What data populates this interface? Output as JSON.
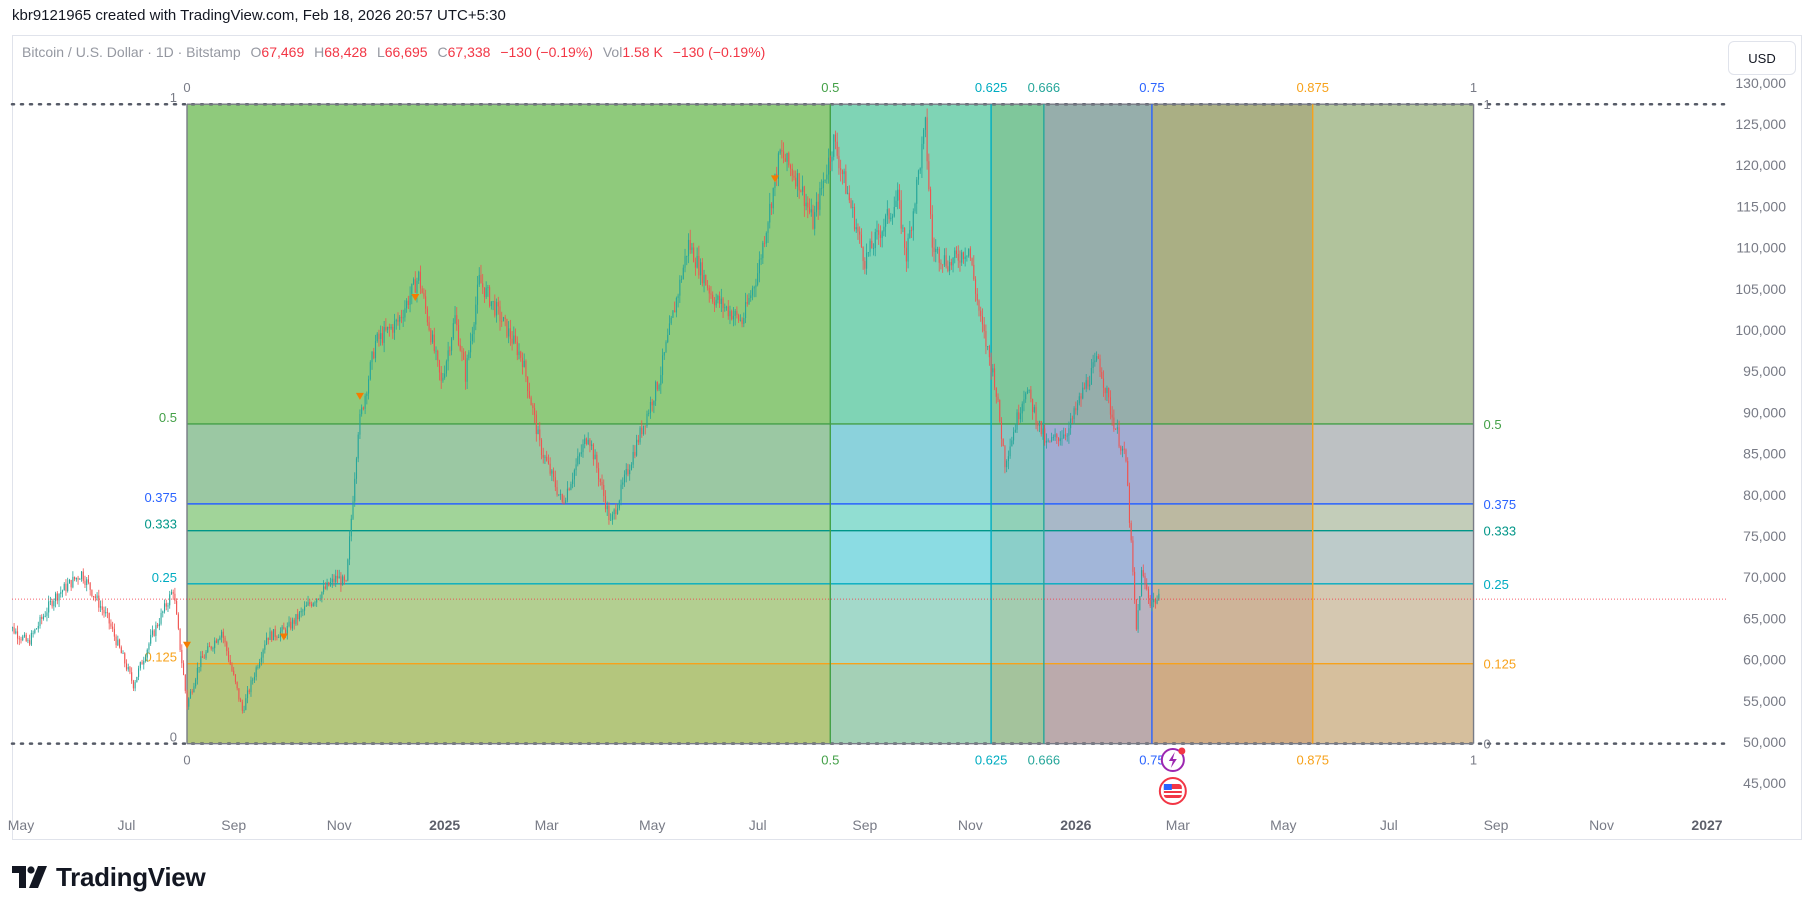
{
  "header": {
    "text": "kbr9121965 created with TradingView.com, Feb 18, 2026 20:57 UTC+5:30"
  },
  "legend": {
    "symbol": "Bitcoin / U.S. Dollar · 1D · Bitstamp",
    "open_label": "O",
    "open": "67,469",
    "high_label": "H",
    "high": "68,428",
    "low_label": "L",
    "low": "66,695",
    "close_label": "C",
    "close": "67,338",
    "change": "−130 (−0.19%)",
    "vol_label": "Vol",
    "vol": "1.58 K",
    "vol_change": "−130 (−0.19%)"
  },
  "currency_button": "USD",
  "logo_text": "TradingView",
  "chart_data": {
    "type": "candlestick",
    "symbol": "Bitcoin / U.S. Dollar",
    "interval": "1D",
    "exchange": "Bitstamp",
    "y_axis": {
      "range": [
        41000,
        131000
      ],
      "ticks": [
        "130,000",
        "125,000",
        "120,000",
        "115,000",
        "110,000",
        "105,000",
        "100,000",
        "95,000",
        "90,000",
        "85,000",
        "80,000",
        "75,000",
        "70,000",
        "65,000",
        "60,000",
        "55,000",
        "50,000",
        "45,000"
      ],
      "tick_values": [
        130000,
        125000,
        120000,
        115000,
        110000,
        105000,
        100000,
        95000,
        90000,
        85000,
        80000,
        75000,
        70000,
        65000,
        60000,
        55000,
        50000,
        45000
      ]
    },
    "x_axis": {
      "labels": [
        "May",
        "Jul",
        "Sep",
        "Nov",
        "2025",
        "Mar",
        "May",
        "Jul",
        "Sep",
        "Nov",
        "2026",
        "Mar",
        "May",
        "Jul",
        "Sep",
        "Nov",
        "2027"
      ],
      "dates": [
        "2024-05-01",
        "2024-07-01",
        "2024-09-01",
        "2024-11-01",
        "2025-01-01",
        "2025-03-01",
        "2025-05-01",
        "2025-07-01",
        "2025-09-01",
        "2025-11-01",
        "2026-01-01",
        "2026-03-01",
        "2026-05-01",
        "2026-07-01",
        "2026-09-01",
        "2026-11-01",
        "2027-01-01"
      ],
      "bold": [
        "2025",
        "2026",
        "2027"
      ],
      "range": [
        "2024-04-22",
        "2027-01-12"
      ]
    },
    "price_line": 67338,
    "price_path": [
      [
        "2024-04-22",
        64500
      ],
      [
        "2024-05-05",
        62000
      ],
      [
        "2024-05-20",
        67500
      ],
      [
        "2024-06-05",
        70500
      ],
      [
        "2024-06-20",
        65000
      ],
      [
        "2024-07-05",
        57000
      ],
      [
        "2024-07-15",
        62500
      ],
      [
        "2024-07-28",
        68500
      ],
      [
        "2024-08-05",
        54500
      ],
      [
        "2024-08-12",
        59500
      ],
      [
        "2024-08-25",
        63500
      ],
      [
        "2024-09-06",
        53800
      ],
      [
        "2024-09-20",
        62800
      ],
      [
        "2024-10-01",
        63500
      ],
      [
        "2024-10-15",
        66800
      ],
      [
        "2024-10-31",
        70000
      ],
      [
        "2024-11-05",
        69000
      ],
      [
        "2024-11-12",
        88000
      ],
      [
        "2024-11-22",
        98500
      ],
      [
        "2024-12-05",
        101000
      ],
      [
        "2024-12-17",
        106500
      ],
      [
        "2024-12-30",
        93500
      ],
      [
        "2025-01-07",
        101500
      ],
      [
        "2025-01-13",
        94500
      ],
      [
        "2025-01-21",
        106000
      ],
      [
        "2025-02-01",
        102000
      ],
      [
        "2025-02-15",
        96500
      ],
      [
        "2025-02-25",
        86000
      ],
      [
        "2025-03-10",
        79000
      ],
      [
        "2025-03-25",
        87500
      ],
      [
        "2025-04-07",
        76500
      ],
      [
        "2025-04-20",
        85000
      ],
      [
        "2025-05-05",
        94000
      ],
      [
        "2025-05-22",
        110500
      ],
      [
        "2025-06-05",
        104000
      ],
      [
        "2025-06-22",
        101000
      ],
      [
        "2025-07-01",
        107000
      ],
      [
        "2025-07-14",
        121500
      ],
      [
        "2025-07-25",
        118000
      ],
      [
        "2025-08-02",
        113000
      ],
      [
        "2025-08-14",
        123000
      ],
      [
        "2025-09-01",
        108500
      ],
      [
        "2025-09-20",
        116000
      ],
      [
        "2025-09-25",
        109000
      ],
      [
        "2025-10-06",
        124700
      ],
      [
        "2025-10-10",
        110000
      ],
      [
        "2025-10-20",
        108000
      ],
      [
        "2025-10-31",
        110000
      ],
      [
        "2025-11-07",
        101000
      ],
      [
        "2025-11-15",
        94000
      ],
      [
        "2025-11-21",
        84000
      ],
      [
        "2025-12-03",
        93000
      ],
      [
        "2025-12-15",
        86000
      ],
      [
        "2025-12-28",
        88000
      ],
      [
        "2026-01-06",
        93000
      ],
      [
        "2026-01-14",
        96500
      ],
      [
        "2026-01-22",
        89500
      ],
      [
        "2026-01-30",
        84000
      ],
      [
        "2026-02-05",
        63500
      ],
      [
        "2026-02-08",
        70500
      ],
      [
        "2026-02-13",
        67000
      ],
      [
        "2026-02-18",
        67338
      ]
    ],
    "markers": [
      [
        "2024-08-05",
        61800
      ],
      [
        "2024-09-30",
        62800
      ],
      [
        "2024-11-13",
        92000
      ],
      [
        "2024-12-15",
        104000
      ],
      [
        "2025-07-11",
        118400
      ]
    ],
    "fib_time_zones": {
      "start_date": "2024-08-05",
      "end_date": "2026-08-19",
      "levels": [
        {
          "label": "0",
          "value": 0,
          "color": "#787b86",
          "fill": "#f5c18a"
        },
        {
          "label": "0.5",
          "value": 0.5,
          "color": "#43a047",
          "fill": "#4caf50"
        },
        {
          "label": "0.625",
          "value": 0.625,
          "color": "#00acc1",
          "fill": "#26c6da"
        },
        {
          "label": "0.666",
          "value": 0.666,
          "color": "#26a69a",
          "fill": "#26a69a"
        },
        {
          "label": "0.75",
          "value": 0.75,
          "color": "#2962ff",
          "fill": "#5c6bc0"
        },
        {
          "label": "0.875",
          "value": 0.875,
          "color": "#f7a21b",
          "fill": "#8d6e63"
        },
        {
          "label": "1",
          "value": 1,
          "color": "#787b86",
          "fill": "#9e9e9e"
        }
      ]
    },
    "fib_price_levels": {
      "low": 49800,
      "high": 127400,
      "levels": [
        {
          "label": "0",
          "value": 0,
          "color": "#787b86",
          "fill": "#ffb74d"
        },
        {
          "label": "0.125",
          "value": 0.125,
          "color": "#f7a21b",
          "fill": "#fbd38d"
        },
        {
          "label": "0.25",
          "value": 0.25,
          "color": "#00acc1",
          "fill": "#b2dfdb"
        },
        {
          "label": "0.333",
          "value": 0.333,
          "color": "#009688",
          "fill": "#c5e1a5"
        },
        {
          "label": "0.375",
          "value": 0.375,
          "color": "#2962ff",
          "fill": "#b0bec5"
        },
        {
          "label": "0.5",
          "value": 0.5,
          "color": "#43a047",
          "fill": "#8bc34a"
        },
        {
          "label": "1",
          "value": 1,
          "color": "#787b86",
          "fill": "#f5c18a"
        }
      ]
    },
    "grid": false,
    "price_scale_side": "right"
  }
}
